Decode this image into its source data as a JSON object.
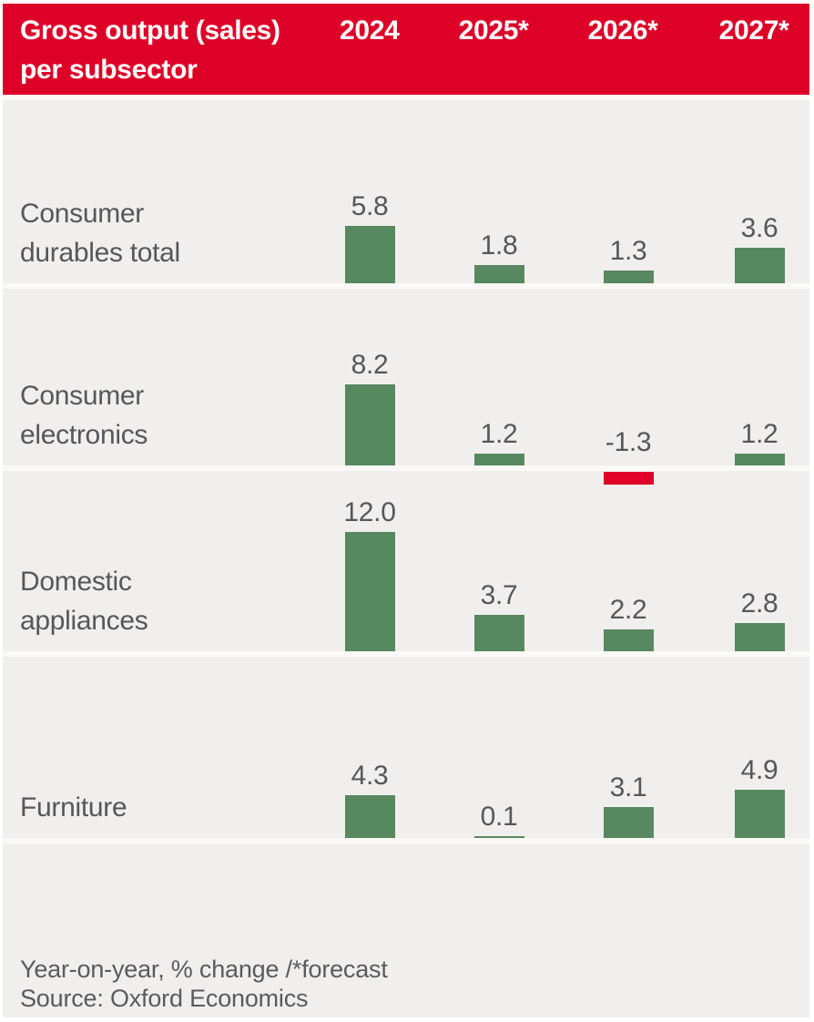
{
  "header": {
    "title_line1": "Gross output (sales)",
    "title_line2": "per subsector",
    "background_color": "#de0127",
    "text_color": "#ffffff"
  },
  "chart_data": {
    "type": "bar",
    "title": "Gross output (sales) per subsector",
    "columns": [
      "2024",
      "2025*",
      "2026*",
      "2027*"
    ],
    "rows": [
      {
        "label": "Consumer durables total",
        "label_lines": [
          "Consumer",
          "durables total"
        ],
        "values": [
          5.8,
          1.8,
          1.3,
          3.6
        ]
      },
      {
        "label": "Consumer electronics",
        "label_lines": [
          "Consumer",
          "electronics"
        ],
        "values": [
          8.2,
          1.2,
          -1.3,
          1.2
        ]
      },
      {
        "label": "Domestic appliances",
        "label_lines": [
          "Domestic",
          "appliances"
        ],
        "values": [
          12.0,
          3.7,
          2.2,
          2.8
        ]
      },
      {
        "label": "Furniture",
        "label_lines": [
          "Furniture"
        ],
        "values": [
          4.3,
          0.1,
          3.1,
          4.9
        ]
      }
    ],
    "value_unit": "year-on-year % change",
    "value_format": "one-decimal",
    "positive_color": "#588860",
    "negative_color": "#e00128",
    "legend": "none",
    "grid": "off"
  },
  "footer": {
    "note": "Year-on-year, % change /*forecast",
    "source": "Source: Oxford Economics"
  },
  "colors": {
    "background": "#f0efed",
    "divider": "#faf9f6",
    "label_text": "#56575a",
    "footer_text": "#5a5b5e"
  }
}
